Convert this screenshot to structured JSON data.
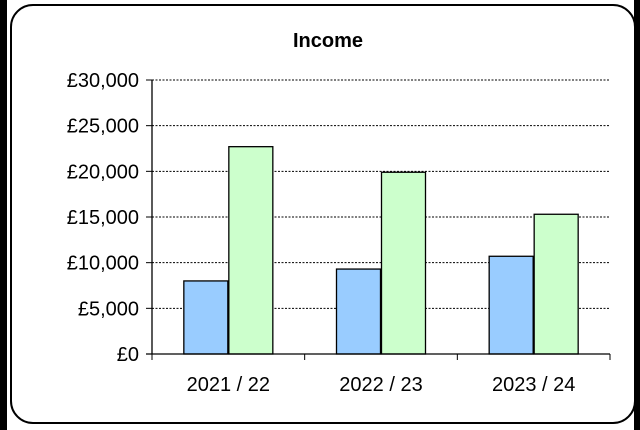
{
  "chart_data": {
    "type": "bar",
    "title": "Income",
    "xlabel": "",
    "ylabel": "",
    "categories": [
      "2021 / 22",
      "2022 / 23",
      "2023 / 24"
    ],
    "series": [
      {
        "values": [
          8000,
          9300,
          10700
        ]
      },
      {
        "values": [
          22700,
          19900,
          15300
        ]
      }
    ],
    "ylim": [
      0,
      30000
    ],
    "yticks": [
      0,
      5000,
      10000,
      15000,
      20000,
      25000,
      30000
    ],
    "ytick_labels": [
      "£0",
      "£5,000",
      "£10,000",
      "£15,000",
      "£20,000",
      "£25,000",
      "£30,000"
    ],
    "grid": true,
    "legend": "none",
    "colors": {
      "series_1": "#99ccff",
      "series_2": "#ccffcc",
      "border": "#000000",
      "background": "#ffffff"
    }
  }
}
